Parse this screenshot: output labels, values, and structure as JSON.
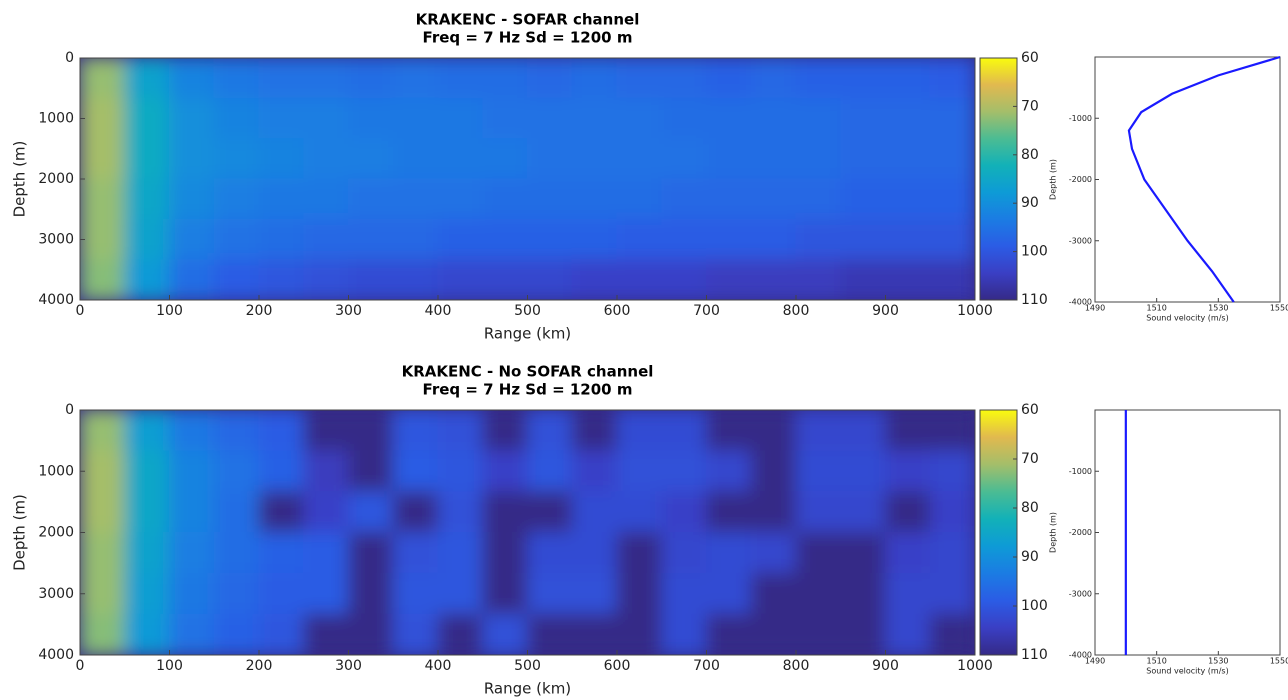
{
  "chart_data": [
    {
      "type": "heatmap",
      "title": [
        "KRAKENC - SOFAR channel",
        "Freq = 7 Hz    Sd = 1200 m"
      ],
      "xlabel": "Range (km)",
      "ylabel": "Depth (m)",
      "xlim": [
        0,
        1000
      ],
      "ylim": [
        0,
        4000
      ],
      "invert_y": true,
      "xticks": [
        0,
        100,
        200,
        300,
        400,
        500,
        600,
        700,
        800,
        900,
        1000
      ],
      "yticks": [
        0,
        1000,
        2000,
        3000,
        4000
      ],
      "x": [
        25,
        75,
        125,
        175,
        225,
        275,
        325,
        375,
        425,
        475,
        525,
        575,
        625,
        675,
        725,
        775,
        825,
        875,
        925,
        975
      ],
      "y": [
        333,
        1000,
        1667,
        2333,
        3000,
        3667
      ],
      "z": [
        [
          72,
          86,
          92,
          94,
          95,
          95,
          96,
          95,
          96,
          96,
          97,
          96,
          97,
          97,
          98,
          97,
          98,
          98,
          98,
          99
        ],
        [
          71,
          84,
          90,
          92,
          93,
          93,
          94,
          94,
          94,
          95,
          95,
          95,
          95,
          96,
          96,
          96,
          96,
          97,
          97,
          97
        ],
        [
          71,
          84,
          90,
          91,
          92,
          93,
          93,
          94,
          94,
          94,
          95,
          95,
          95,
          95,
          96,
          96,
          96,
          97,
          97,
          97
        ],
        [
          72,
          85,
          91,
          93,
          94,
          94,
          95,
          95,
          95,
          96,
          96,
          96,
          96,
          97,
          97,
          97,
          97,
          98,
          98,
          98
        ],
        [
          72,
          86,
          93,
          95,
          96,
          97,
          97,
          97,
          98,
          98,
          98,
          98,
          99,
          99,
          99,
          99,
          100,
          100,
          100,
          100
        ],
        [
          73,
          88,
          96,
          99,
          100,
          101,
          102,
          102,
          103,
          103,
          103,
          104,
          104,
          104,
          105,
          105,
          105,
          106,
          106,
          106
        ]
      ],
      "clim": [
        60,
        110
      ],
      "cticks": [
        60,
        70,
        80,
        90,
        100,
        110
      ],
      "colormap": [
        "#f9fb0e",
        "#e1b94f",
        "#a4be6a",
        "#4bbc93",
        "#12b1b8",
        "#0e9bd6",
        "#1b7ce3",
        "#2b5ce5",
        "#3a3fc4",
        "#352a87"
      ]
    },
    {
      "type": "line",
      "xlabel": "Sound velocity (m/s)",
      "ylabel": "Depth (m)",
      "xlim": [
        1490,
        1550
      ],
      "ylim": [
        -4000,
        0
      ],
      "xticks": [
        1490,
        1510,
        1530,
        1550
      ],
      "yticks": [
        -4000,
        -3000,
        -2000,
        -1000
      ],
      "x": [
        1550,
        1530,
        1515,
        1505,
        1501,
        1502,
        1506,
        1513,
        1520,
        1528,
        1535
      ],
      "values": [
        0,
        -300,
        -600,
        -900,
        -1200,
        -1500,
        -2000,
        -2500,
        -3000,
        -3500,
        -4000
      ],
      "color": "#1a1aff"
    },
    {
      "type": "heatmap",
      "title": [
        "KRAKENC - No SOFAR channel",
        "Freq = 7 Hz    Sd = 1200 m"
      ],
      "xlabel": "Range (km)",
      "ylabel": "Depth (m)",
      "xlim": [
        0,
        1000
      ],
      "ylim": [
        0,
        4000
      ],
      "invert_y": true,
      "xticks": [
        0,
        100,
        200,
        300,
        400,
        500,
        600,
        700,
        800,
        900,
        1000
      ],
      "yticks": [
        0,
        1000,
        2000,
        3000,
        4000
      ],
      "x": [
        25,
        75,
        125,
        175,
        225,
        275,
        325,
        375,
        425,
        475,
        525,
        575,
        625,
        675,
        725,
        775,
        825,
        875,
        925,
        975
      ],
      "y": [
        333,
        1000,
        1667,
        2333,
        3000,
        3667
      ],
      "z": [
        [
          72,
          87,
          94,
          97,
          99,
          110,
          110,
          100,
          101,
          110,
          101,
          110,
          102,
          102,
          110,
          110,
          103,
          103,
          110,
          110
        ],
        [
          71,
          85,
          92,
          95,
          98,
          105,
          110,
          99,
          100,
          104,
          100,
          104,
          101,
          101,
          103,
          110,
          102,
          102,
          104,
          103
        ],
        [
          71,
          85,
          92,
          96,
          110,
          104,
          100,
          110,
          101,
          110,
          110,
          102,
          102,
          104,
          110,
          110,
          103,
          103,
          110,
          104
        ],
        [
          72,
          86,
          93,
          96,
          98,
          99,
          110,
          101,
          100,
          110,
          102,
          102,
          110,
          103,
          102,
          103,
          110,
          110,
          104,
          103
        ],
        [
          72,
          87,
          94,
          97,
          99,
          99,
          110,
          100,
          100,
          110,
          101,
          101,
          110,
          102,
          102,
          110,
          110,
          110,
          103,
          103
        ],
        [
          73,
          88,
          95,
          98,
          100,
          110,
          110,
          101,
          110,
          101,
          110,
          110,
          110,
          102,
          110,
          110,
          110,
          110,
          103,
          110
        ]
      ],
      "clim": [
        60,
        110
      ],
      "cticks": [
        60,
        70,
        80,
        90,
        100,
        110
      ],
      "colormap": [
        "#f9fb0e",
        "#e1b94f",
        "#a4be6a",
        "#4bbc93",
        "#12b1b8",
        "#0e9bd6",
        "#1b7ce3",
        "#2b5ce5",
        "#3a3fc4",
        "#352a87"
      ]
    },
    {
      "type": "line",
      "xlabel": "Sound velocity (m/s)",
      "ylabel": "Depth (m)",
      "xlim": [
        1490,
        1550
      ],
      "ylim": [
        -4000,
        0
      ],
      "xticks": [
        1490,
        1510,
        1530,
        1550
      ],
      "yticks": [
        -4000,
        -3000,
        -2000,
        -1000
      ],
      "x": [
        1500,
        1500
      ],
      "values": [
        0,
        -4000
      ],
      "color": "#1a1aff"
    }
  ]
}
